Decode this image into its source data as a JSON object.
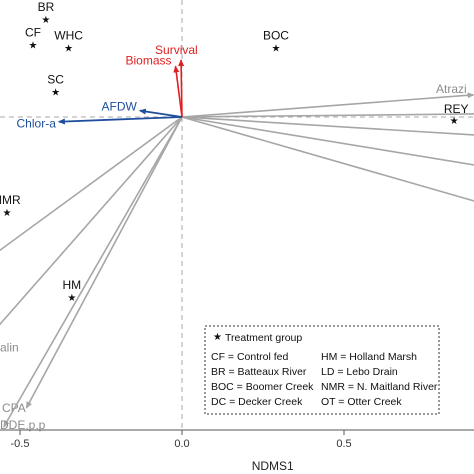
{
  "chart_data": {
    "type": "scatter",
    "xlabel": "NDMS1",
    "x_ticks": [
      "-0.5",
      "0.0",
      "0.5"
    ],
    "x_tick_values": [
      -0.5,
      0.0,
      0.5
    ],
    "xlim": [
      -0.56,
      0.89
    ],
    "ylim": [
      -0.99,
      0.37
    ],
    "reference_lines": {
      "x": 0,
      "y": 0
    },
    "sites": [
      {
        "label": "BR",
        "x": -0.42,
        "y": 0.31
      },
      {
        "label": "CF",
        "x": -0.46,
        "y": 0.23
      },
      {
        "label": "WHC",
        "x": -0.35,
        "y": 0.22
      },
      {
        "label": "SC",
        "x": -0.39,
        "y": 0.08
      },
      {
        "label": "BOC",
        "x": 0.29,
        "y": 0.22
      },
      {
        "label": "REY",
        "x": 0.84,
        "y": -0.01
      },
      {
        "label": "NMR",
        "x": -0.54,
        "y": -0.3
      },
      {
        "label": "HM",
        "x": -0.34,
        "y": -0.57
      }
    ],
    "vectors_red": [
      {
        "label": "Survival",
        "x": -0.003,
        "y": 0.18
      },
      {
        "label": "Biomass",
        "x": -0.02,
        "y": 0.16
      }
    ],
    "vectors_blue": [
      {
        "label": "AFDW",
        "x": -0.13,
        "y": 0.02
      },
      {
        "label": "Chlor-a",
        "x": -0.38,
        "y": -0.015
      }
    ],
    "vectors_gray": [
      {
        "label": "Atrazi",
        "x": 0.9,
        "y": 0.07
      },
      {
        "label": "",
        "x": 0.95,
        "y": 0.01
      },
      {
        "label": "",
        "x": 0.95,
        "y": -0.06
      },
      {
        "label": "",
        "x": 0.95,
        "y": -0.16
      },
      {
        "label": "",
        "x": 0.95,
        "y": -0.28
      },
      {
        "label": "alin",
        "x": -0.6,
        "y": -0.7
      },
      {
        "label": "CPA",
        "x": -0.48,
        "y": -0.92
      },
      {
        "label": "DDE,p,p",
        "x": -0.55,
        "y": -0.98
      },
      {
        "label": "",
        "x": -0.6,
        "y": -0.45
      }
    ],
    "legend": {
      "title": "Treatment group",
      "placement": "bottom-right",
      "entries": [
        [
          "CF = Control fed",
          "HM = Holland Marsh"
        ],
        [
          "BR = Batteaux River",
          "LD = Lebo Drain"
        ],
        [
          "BOC = Boomer Creek",
          "NMR = N. Maitland River"
        ],
        [
          "DC = Decker Creek",
          "OT = Otter Creek"
        ]
      ]
    },
    "colors": {
      "site": "#111111",
      "red_vector": "#e02020",
      "blue_vector": "#1f4e9c",
      "gray_vector": "#a6a6a6",
      "gray_label": "#8c8c8c",
      "axis": "#555555",
      "reference": "#aaaaaa"
    }
  }
}
